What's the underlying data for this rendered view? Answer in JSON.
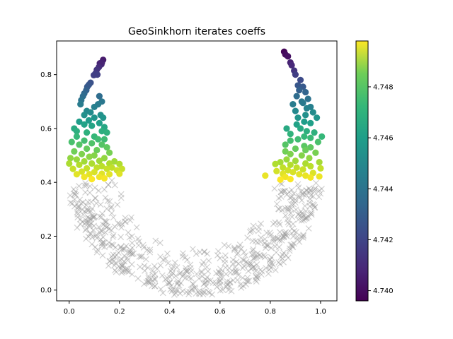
{
  "chart_data": {
    "type": "scatter",
    "title": "GeoSinkhorn iterates coeffs",
    "xlabel": "",
    "ylabel": "",
    "xlim": [
      -0.05,
      1.065
    ],
    "ylim": [
      -0.04,
      0.925
    ],
    "xticks": [
      "0.0",
      "0.2",
      "0.4",
      "0.6",
      "0.8",
      "1.0"
    ],
    "yticks": [
      "0.0",
      "0.2",
      "0.4",
      "0.6",
      "0.8"
    ],
    "grid": false,
    "background_points": {
      "marker": "x",
      "color": "#9a9a9a",
      "description_region": "lower half-ring, radius ~0.5 centered at (0.5, 0.4), y range 0.0–0.43",
      "count": 620
    },
    "colored_points": {
      "marker": "o",
      "colormap": "viridis",
      "left_arm": [
        [
          0.135,
          0.855
        ],
        [
          0.13,
          0.845
        ],
        [
          0.128,
          0.838
        ],
        [
          0.122,
          0.842
        ],
        [
          0.118,
          0.828
        ],
        [
          0.11,
          0.818
        ],
        [
          0.105,
          0.805
        ],
        [
          0.098,
          0.798
        ],
        [
          0.112,
          0.8
        ],
        [
          0.085,
          0.77
        ],
        [
          0.078,
          0.762
        ],
        [
          0.072,
          0.755
        ],
        [
          0.068,
          0.742
        ],
        [
          0.06,
          0.73
        ],
        [
          0.055,
          0.72
        ],
        [
          0.048,
          0.705
        ],
        [
          0.12,
          0.72
        ],
        [
          0.13,
          0.7
        ],
        [
          0.045,
          0.69
        ],
        [
          0.115,
          0.69
        ],
        [
          0.1,
          0.68
        ],
        [
          0.07,
          0.665
        ],
        [
          0.085,
          0.66
        ],
        [
          0.06,
          0.65
        ],
        [
          0.125,
          0.65
        ],
        [
          0.135,
          0.64
        ],
        [
          0.1,
          0.64
        ],
        [
          0.078,
          0.63
        ],
        [
          0.04,
          0.625
        ],
        [
          0.12,
          0.62
        ],
        [
          0.06,
          0.615
        ],
        [
          0.09,
          0.61
        ],
        [
          0.14,
          0.605
        ],
        [
          0.02,
          0.6
        ],
        [
          0.03,
          0.59
        ],
        [
          0.13,
          0.59
        ],
        [
          0.07,
          0.585
        ],
        [
          0.15,
          0.585
        ],
        [
          0.1,
          0.57
        ],
        [
          0.03,
          0.57
        ],
        [
          0.115,
          0.56
        ],
        [
          0.14,
          0.56
        ],
        [
          0.06,
          0.555
        ],
        [
          0.01,
          0.55
        ],
        [
          0.09,
          0.545
        ],
        [
          0.13,
          0.54
        ],
        [
          0.04,
          0.54
        ],
        [
          0.15,
          0.53
        ],
        [
          0.07,
          0.525
        ],
        [
          0.11,
          0.52
        ],
        [
          0.02,
          0.515
        ],
        [
          0.16,
          0.51
        ],
        [
          0.05,
          0.505
        ],
        [
          0.1,
          0.5
        ],
        [
          0.08,
          0.495
        ],
        [
          0.14,
          0.49
        ],
        [
          0.005,
          0.49
        ],
        [
          0.03,
          0.485
        ],
        [
          0.12,
          0.48
        ],
        [
          0.06,
          0.478
        ],
        [
          0.18,
          0.478
        ],
        [
          0.16,
          0.47
        ],
        [
          0.09,
          0.47
        ],
        [
          0.0,
          0.47
        ],
        [
          0.04,
          0.465
        ],
        [
          0.2,
          0.468
        ],
        [
          0.13,
          0.46
        ],
        [
          0.11,
          0.455
        ],
        [
          0.17,
          0.455
        ],
        [
          0.07,
          0.452
        ],
        [
          0.015,
          0.45
        ],
        [
          0.15,
          0.45
        ],
        [
          0.21,
          0.45
        ],
        [
          0.19,
          0.445
        ],
        [
          0.05,
          0.44
        ],
        [
          0.1,
          0.438
        ],
        [
          0.13,
          0.432
        ],
        [
          0.08,
          0.43
        ],
        [
          0.03,
          0.43
        ],
        [
          0.16,
          0.43
        ],
        [
          0.2,
          0.432
        ],
        [
          0.06,
          0.42
        ],
        [
          0.12,
          0.42
        ],
        [
          0.14,
          0.415
        ],
        [
          0.09,
          0.412
        ]
      ],
      "right_arm": [
        [
          0.855,
          0.885
        ],
        [
          0.86,
          0.875
        ],
        [
          0.87,
          0.868
        ],
        [
          0.88,
          0.845
        ],
        [
          0.885,
          0.835
        ],
        [
          0.895,
          0.815
        ],
        [
          0.9,
          0.8
        ],
        [
          0.92,
          0.78
        ],
        [
          0.91,
          0.76
        ],
        [
          0.93,
          0.755
        ],
        [
          0.915,
          0.742
        ],
        [
          0.94,
          0.735
        ],
        [
          0.905,
          0.72
        ],
        [
          0.95,
          0.71
        ],
        [
          0.925,
          0.7
        ],
        [
          0.93,
          0.695
        ],
        [
          0.89,
          0.69
        ],
        [
          0.96,
          0.68
        ],
        [
          0.945,
          0.675
        ],
        [
          0.9,
          0.665
        ],
        [
          0.97,
          0.66
        ],
        [
          0.94,
          0.65
        ],
        [
          0.91,
          0.64
        ],
        [
          0.985,
          0.64
        ],
        [
          0.935,
          0.625
        ],
        [
          0.96,
          0.62
        ],
        [
          0.905,
          0.615
        ],
        [
          0.92,
          0.6
        ],
        [
          0.945,
          0.59
        ],
        [
          0.865,
          0.6
        ],
        [
          0.975,
          0.585
        ],
        [
          0.88,
          0.58
        ],
        [
          0.935,
          0.57
        ],
        [
          1.005,
          0.57
        ],
        [
          0.96,
          0.565
        ],
        [
          0.91,
          0.56
        ],
        [
          0.88,
          0.555
        ],
        [
          0.99,
          0.55
        ],
        [
          0.86,
          0.54
        ],
        [
          0.935,
          0.535
        ],
        [
          0.96,
          0.53
        ],
        [
          0.9,
          0.525
        ],
        [
          0.94,
          0.52
        ],
        [
          0.86,
          0.515
        ],
        [
          0.98,
          0.51
        ],
        [
          0.88,
          0.505
        ],
        [
          0.925,
          0.5
        ],
        [
          0.955,
          0.49
        ],
        [
          0.865,
          0.485
        ],
        [
          0.9,
          0.48
        ],
        [
          0.995,
          0.475
        ],
        [
          0.84,
          0.475
        ],
        [
          0.94,
          0.47
        ],
        [
          0.88,
          0.465
        ],
        [
          0.82,
          0.468
        ],
        [
          0.96,
          0.46
        ],
        [
          0.905,
          0.455
        ],
        [
          0.85,
          0.455
        ],
        [
          1.0,
          0.452
        ],
        [
          0.93,
          0.448
        ],
        [
          0.87,
          0.445
        ],
        [
          0.825,
          0.442
        ],
        [
          0.89,
          0.438
        ],
        [
          0.97,
          0.435
        ],
        [
          0.85,
          0.432
        ],
        [
          0.915,
          0.43
        ],
        [
          0.78,
          0.425
        ],
        [
          0.94,
          0.425
        ],
        [
          0.86,
          0.42
        ],
        [
          0.995,
          0.422
        ],
        [
          0.88,
          0.412
        ],
        [
          0.96,
          0.418
        ],
        [
          0.84,
          0.41
        ]
      ]
    },
    "colorbar": {
      "vmin": 4.7396,
      "vmax": 4.7498,
      "ticks": [
        "4.740",
        "4.742",
        "4.744",
        "4.746",
        "4.748"
      ],
      "tick_values": [
        4.74,
        4.742,
        4.744,
        4.746,
        4.748
      ]
    }
  }
}
